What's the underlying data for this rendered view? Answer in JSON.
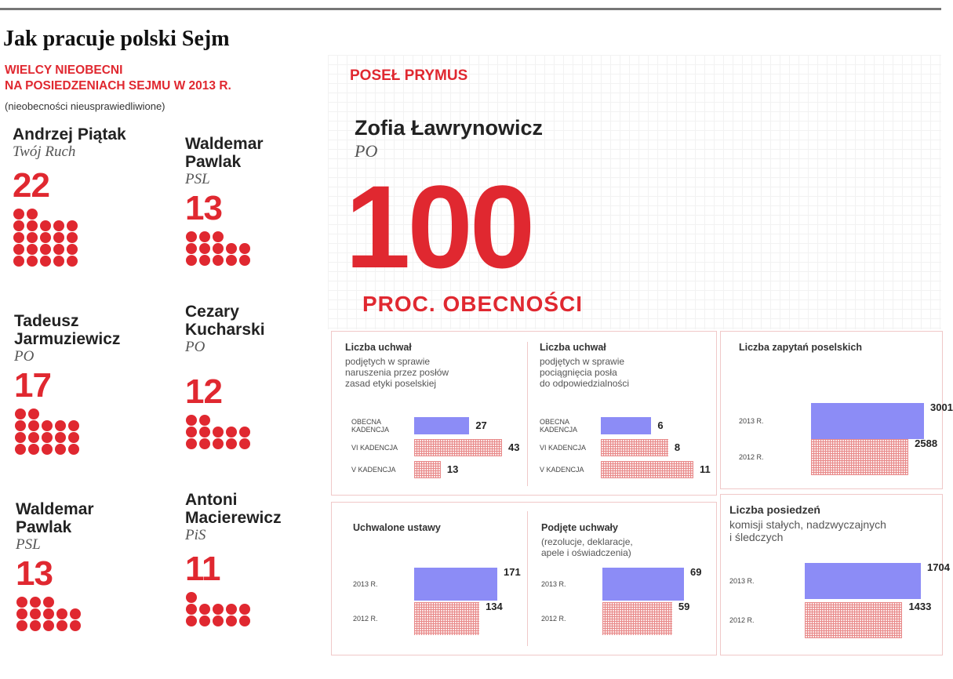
{
  "header": {
    "title": "Jak pracuje polski Sejm",
    "absent_title_line1": "WIELCY NIEOBECNI",
    "absent_title_line2": "NA POSIEDZENIACH SEJMU W 2013 R.",
    "absent_note": "(nieobecności nieusprawiedliwione)"
  },
  "politicians": [
    {
      "name_line1": "Andrzej Piątak",
      "name_line2": "",
      "party": "Twój Ruch",
      "absences": 22
    },
    {
      "name_line1": "Waldemar",
      "name_line2": "Pawlak",
      "party": "PSL",
      "absences": 13
    },
    {
      "name_line1": "Tadeusz",
      "name_line2": "Jarmuziewicz",
      "party": "PO",
      "absences": 17
    },
    {
      "name_line1": "Cezary",
      "name_line2": "Kucharski",
      "party": "PO",
      "absences": 12
    },
    {
      "name_line1": "Waldemar",
      "name_line2": "Pawlak",
      "party": "PSL",
      "absences": 13
    },
    {
      "name_line1": "Antoni",
      "name_line2": "Macierewicz",
      "party": "PiS",
      "absences": 11
    }
  ],
  "prymus": {
    "label": "POSEŁ PRYMUS",
    "name": "Zofia Ławrynowicz",
    "party": "PO",
    "value": "100",
    "value_caption": "PROC. OBECNOŚCI"
  },
  "colors": {
    "accent_red": "#e02830",
    "current_blue": "#8c8cf6",
    "past_pattern": "#e88a8a"
  },
  "chart_data": [
    {
      "type": "bar",
      "title": "Liczba uchwał",
      "description": [
        "podjętych w sprawie",
        "naruszenia przez posłów",
        "zasad etyki poselskiej"
      ],
      "categories": [
        "OBECNA\nKADENCJA",
        "VI KADENCJA",
        "V KADENCJA"
      ],
      "values": [
        27,
        43,
        13
      ],
      "orientation": "horizontal"
    },
    {
      "type": "bar",
      "title": "Liczba uchwał",
      "description": [
        "podjętych w sprawie",
        "pociągnięcia posła",
        "do odpowiedzialności"
      ],
      "categories": [
        "OBECNA\nKADENCJA",
        "VI KADENCJA",
        "V KADENCJA"
      ],
      "values": [
        6,
        8,
        11
      ],
      "orientation": "horizontal"
    },
    {
      "type": "bar",
      "title": "Liczba zapytań poselskich",
      "description": [],
      "categories": [
        "2013 R.",
        "2012 R."
      ],
      "values": [
        3001,
        2588
      ],
      "orientation": "horizontal"
    },
    {
      "type": "bar",
      "title": "Uchwalone ustawy",
      "description": [],
      "categories": [
        "2013 R.",
        "2012 R."
      ],
      "values": [
        171,
        134
      ],
      "orientation": "horizontal"
    },
    {
      "type": "bar",
      "title": "Podjęte uchwały",
      "description": [
        "(rezolucje, deklaracje,",
        "apele i oświadczenia)"
      ],
      "categories": [
        "2013 R.",
        "2012 R."
      ],
      "values": [
        69,
        59
      ],
      "orientation": "horizontal"
    },
    {
      "type": "bar",
      "title": "Liczba posiedzeń",
      "description": [
        "komisji stałych, nadzwyczajnych",
        "i śledczych"
      ],
      "categories": [
        "2013 R.",
        "2012 R."
      ],
      "values": [
        1704,
        1433
      ],
      "orientation": "horizontal"
    }
  ]
}
